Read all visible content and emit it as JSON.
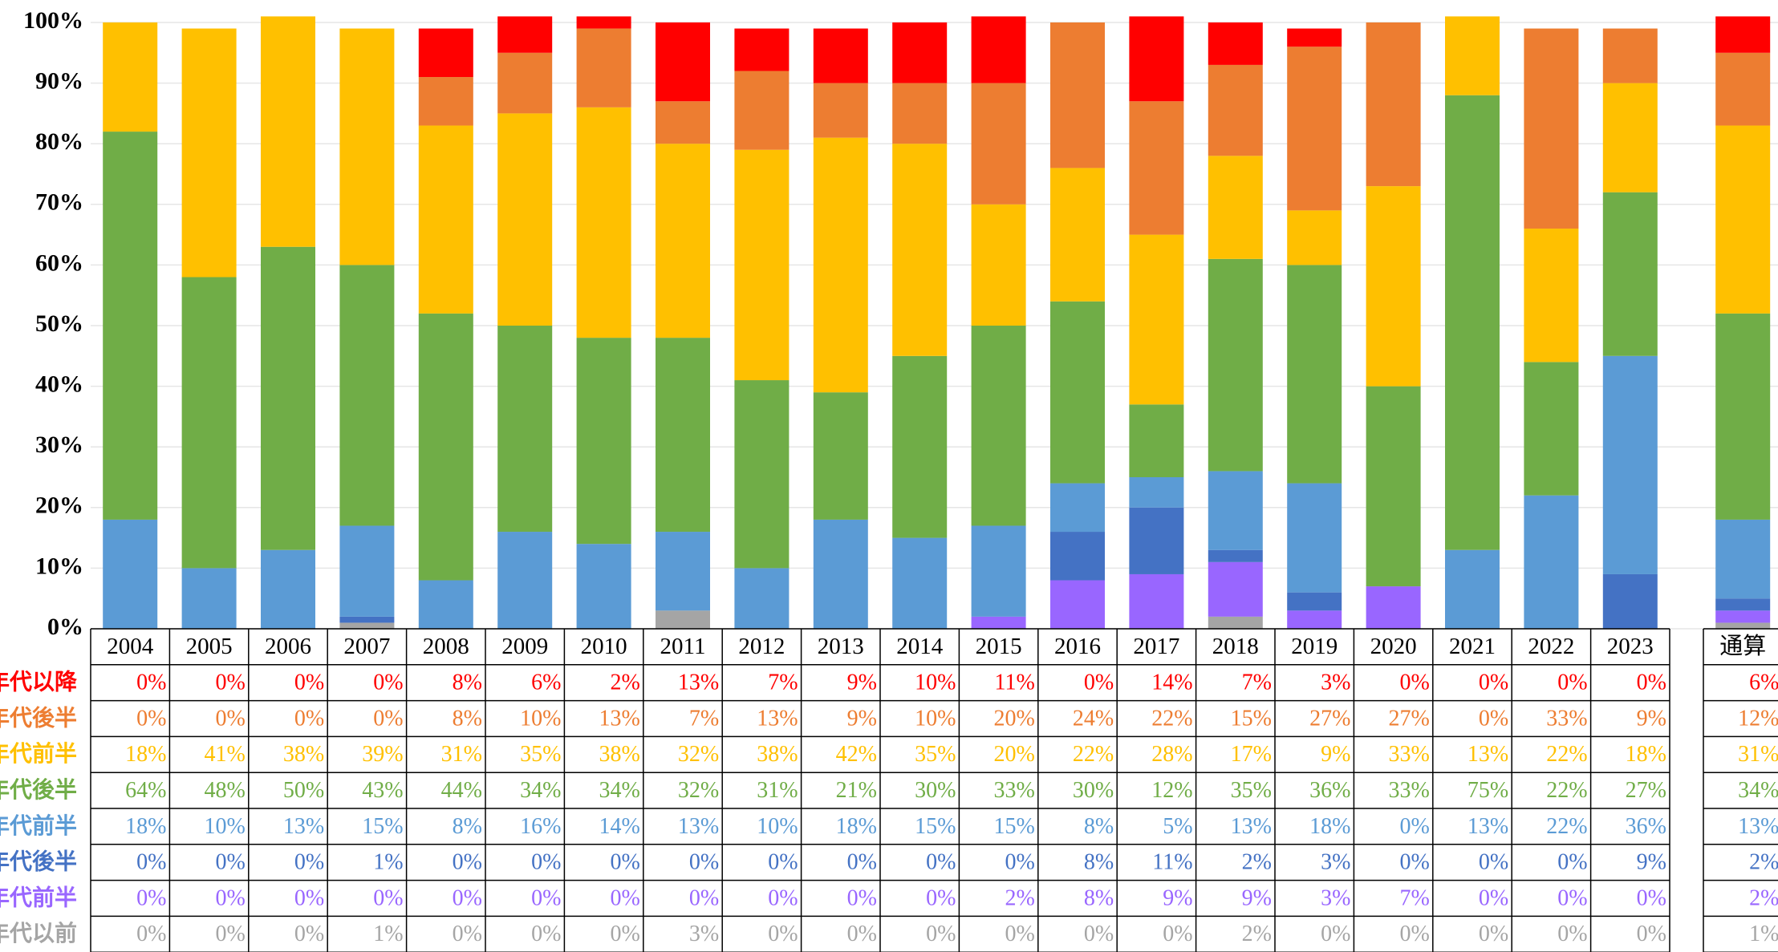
{
  "chart_data": {
    "type": "stacked_bar_percent",
    "categories": [
      "2004",
      "2005",
      "2006",
      "2007",
      "2008",
      "2009",
      "2010",
      "2011",
      "2012",
      "2013",
      "2014",
      "2015",
      "2016",
      "2017",
      "2018",
      "2019",
      "2020",
      "2021",
      "2022",
      "2023",
      "通算"
    ],
    "ylim": [
      0,
      100
    ],
    "yticks": [
      {
        "value": 0,
        "label": "0%"
      },
      {
        "value": 10,
        "label": "10%"
      },
      {
        "value": 20,
        "label": "20%"
      },
      {
        "value": 30,
        "label": "30%"
      },
      {
        "value": 40,
        "label": "40%"
      },
      {
        "value": 50,
        "label": "50%"
      },
      {
        "value": 60,
        "label": "60%"
      },
      {
        "value": 70,
        "label": "70%"
      },
      {
        "value": 80,
        "label": "80%"
      },
      {
        "value": 90,
        "label": "90%"
      },
      {
        "value": 100,
        "label": "100%"
      }
    ],
    "grid": true,
    "series": [
      {
        "name": "年代以降",
        "color": "#ff0000",
        "values": [
          0,
          0,
          0,
          0,
          8,
          6,
          2,
          13,
          7,
          9,
          10,
          11,
          0,
          14,
          7,
          3,
          0,
          0,
          0,
          0,
          6
        ],
        "value_labels": [
          "0%",
          "0%",
          "0%",
          "0%",
          "8%",
          "6%",
          "2%",
          "13%",
          "7%",
          "9%",
          "10%",
          "11%",
          "0%",
          "14%",
          "7%",
          "3%",
          "0%",
          "0%",
          "0%",
          "0%",
          "6%"
        ]
      },
      {
        "name": "年代後半",
        "color": "#ed7d31",
        "values": [
          0,
          0,
          0,
          0,
          8,
          10,
          13,
          7,
          13,
          9,
          10,
          20,
          24,
          22,
          15,
          27,
          27,
          0,
          33,
          9,
          12
        ],
        "value_labels": [
          "0%",
          "0%",
          "0%",
          "0%",
          "8%",
          "10%",
          "13%",
          "7%",
          "13%",
          "9%",
          "10%",
          "20%",
          "24%",
          "22%",
          "15%",
          "27%",
          "27%",
          "0%",
          "33%",
          "9%",
          "12%"
        ]
      },
      {
        "name": "年代前半",
        "color": "#ffc000",
        "values": [
          18,
          41,
          38,
          39,
          31,
          35,
          38,
          32,
          38,
          42,
          35,
          20,
          22,
          28,
          17,
          9,
          33,
          13,
          22,
          18,
          31
        ],
        "value_labels": [
          "18%",
          "41%",
          "38%",
          "39%",
          "31%",
          "35%",
          "38%",
          "32%",
          "38%",
          "42%",
          "35%",
          "20%",
          "22%",
          "28%",
          "17%",
          "9%",
          "33%",
          "13%",
          "22%",
          "18%",
          "31%"
        ]
      },
      {
        "name": "年代後半",
        "color": "#70ad47",
        "values": [
          64,
          48,
          50,
          43,
          44,
          34,
          34,
          32,
          31,
          21,
          30,
          33,
          30,
          12,
          35,
          36,
          33,
          75,
          22,
          27,
          34
        ],
        "value_labels": [
          "64%",
          "48%",
          "50%",
          "43%",
          "44%",
          "34%",
          "34%",
          "32%",
          "31%",
          "21%",
          "30%",
          "33%",
          "30%",
          "12%",
          "35%",
          "36%",
          "33%",
          "75%",
          "22%",
          "27%",
          "34%"
        ]
      },
      {
        "name": "年代前半",
        "color": "#5b9bd5",
        "values": [
          18,
          10,
          13,
          15,
          8,
          16,
          14,
          13,
          10,
          18,
          15,
          15,
          8,
          5,
          13,
          18,
          0,
          13,
          22,
          36,
          13
        ],
        "value_labels": [
          "18%",
          "10%",
          "13%",
          "15%",
          "8%",
          "16%",
          "14%",
          "13%",
          "10%",
          "18%",
          "15%",
          "15%",
          "8%",
          "5%",
          "13%",
          "18%",
          "0%",
          "13%",
          "22%",
          "36%",
          "13%"
        ]
      },
      {
        "name": "年代後半",
        "color": "#4472c4",
        "values": [
          0,
          0,
          0,
          1,
          0,
          0,
          0,
          0,
          0,
          0,
          0,
          0,
          8,
          11,
          2,
          3,
          0,
          0,
          0,
          9,
          2
        ],
        "value_labels": [
          "0%",
          "0%",
          "0%",
          "1%",
          "0%",
          "0%",
          "0%",
          "0%",
          "0%",
          "0%",
          "0%",
          "0%",
          "8%",
          "11%",
          "2%",
          "3%",
          "0%",
          "0%",
          "0%",
          "9%",
          "2%"
        ]
      },
      {
        "name": "年代前半",
        "color": "#9966ff",
        "values": [
          0,
          0,
          0,
          0,
          0,
          0,
          0,
          0,
          0,
          0,
          0,
          2,
          8,
          9,
          9,
          3,
          7,
          0,
          0,
          0,
          2
        ],
        "value_labels": [
          "0%",
          "0%",
          "0%",
          "0%",
          "0%",
          "0%",
          "0%",
          "0%",
          "0%",
          "0%",
          "0%",
          "2%",
          "8%",
          "9%",
          "9%",
          "3%",
          "7%",
          "0%",
          "0%",
          "0%",
          "2%"
        ]
      },
      {
        "name": "年代以前",
        "color": "#a5a5a5",
        "values": [
          0,
          0,
          0,
          1,
          0,
          0,
          0,
          3,
          0,
          0,
          0,
          0,
          0,
          0,
          2,
          0,
          0,
          0,
          0,
          0,
          1
        ],
        "value_labels": [
          "0%",
          "0%",
          "0%",
          "1%",
          "0%",
          "0%",
          "0%",
          "3%",
          "0%",
          "0%",
          "0%",
          "0%",
          "0%",
          "0%",
          "2%",
          "0%",
          "0%",
          "0%",
          "0%",
          "0%",
          "1%"
        ]
      }
    ]
  }
}
